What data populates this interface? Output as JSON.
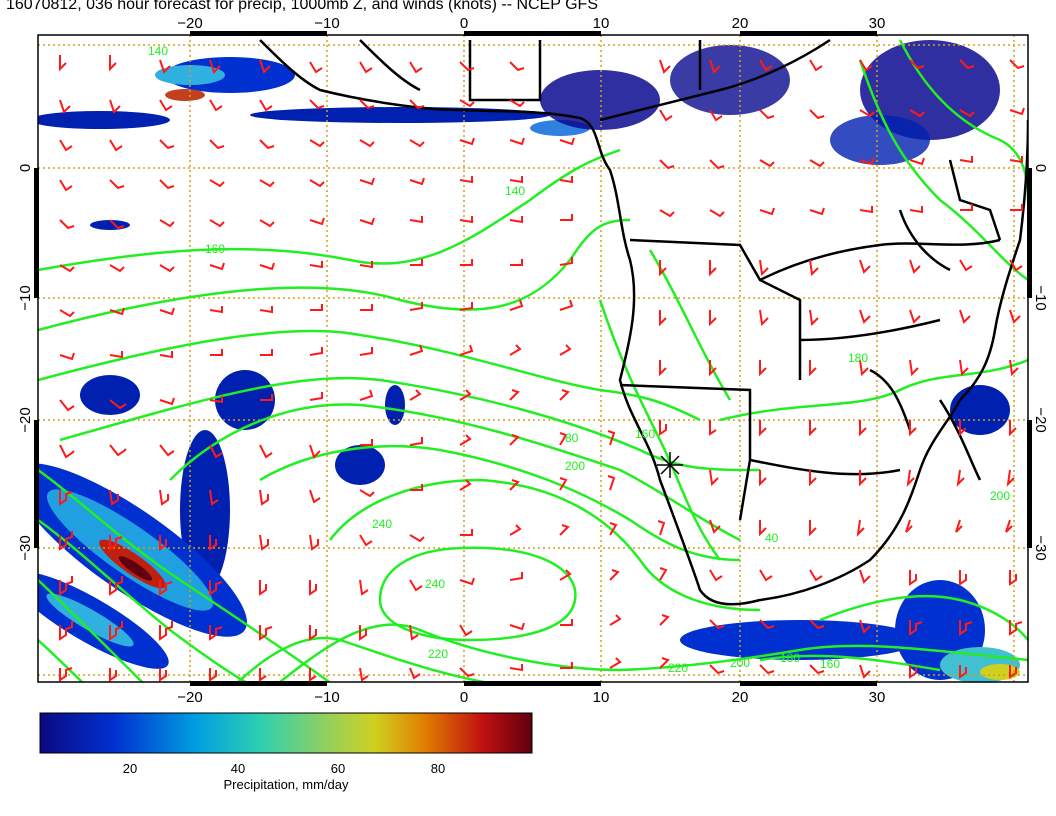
{
  "title": "16070812, 036 hour forecast for precip, 1000mb Z, and winds (knots) -- NCEP GFS",
  "axes": {
    "lon_ticks": [
      "−20",
      "−10",
      "0",
      "10",
      "20",
      "30"
    ],
    "lat_ticks": [
      "0",
      "−10",
      "−20",
      "−30"
    ]
  },
  "contour_labels": [
    "140",
    "140",
    "160",
    "160",
    "180",
    "180",
    "200",
    "200",
    "220",
    "220",
    "240",
    "240",
    "80",
    "160",
    "200",
    "40"
  ],
  "colorbar": {
    "label": "Precipitation, mm/day",
    "ticks": [
      "20",
      "40",
      "60",
      "80"
    ],
    "colors": [
      "#0a0a80",
      "#0030d0",
      "#00a0e0",
      "#30d0b0",
      "#90d060",
      "#d0d020",
      "#e08000",
      "#c01010",
      "#600010"
    ]
  },
  "colors": {
    "contour": "#22ee22",
    "wind_barb": "#ff1a1a",
    "coastline": "#000000",
    "grid": "#d4a017"
  }
}
